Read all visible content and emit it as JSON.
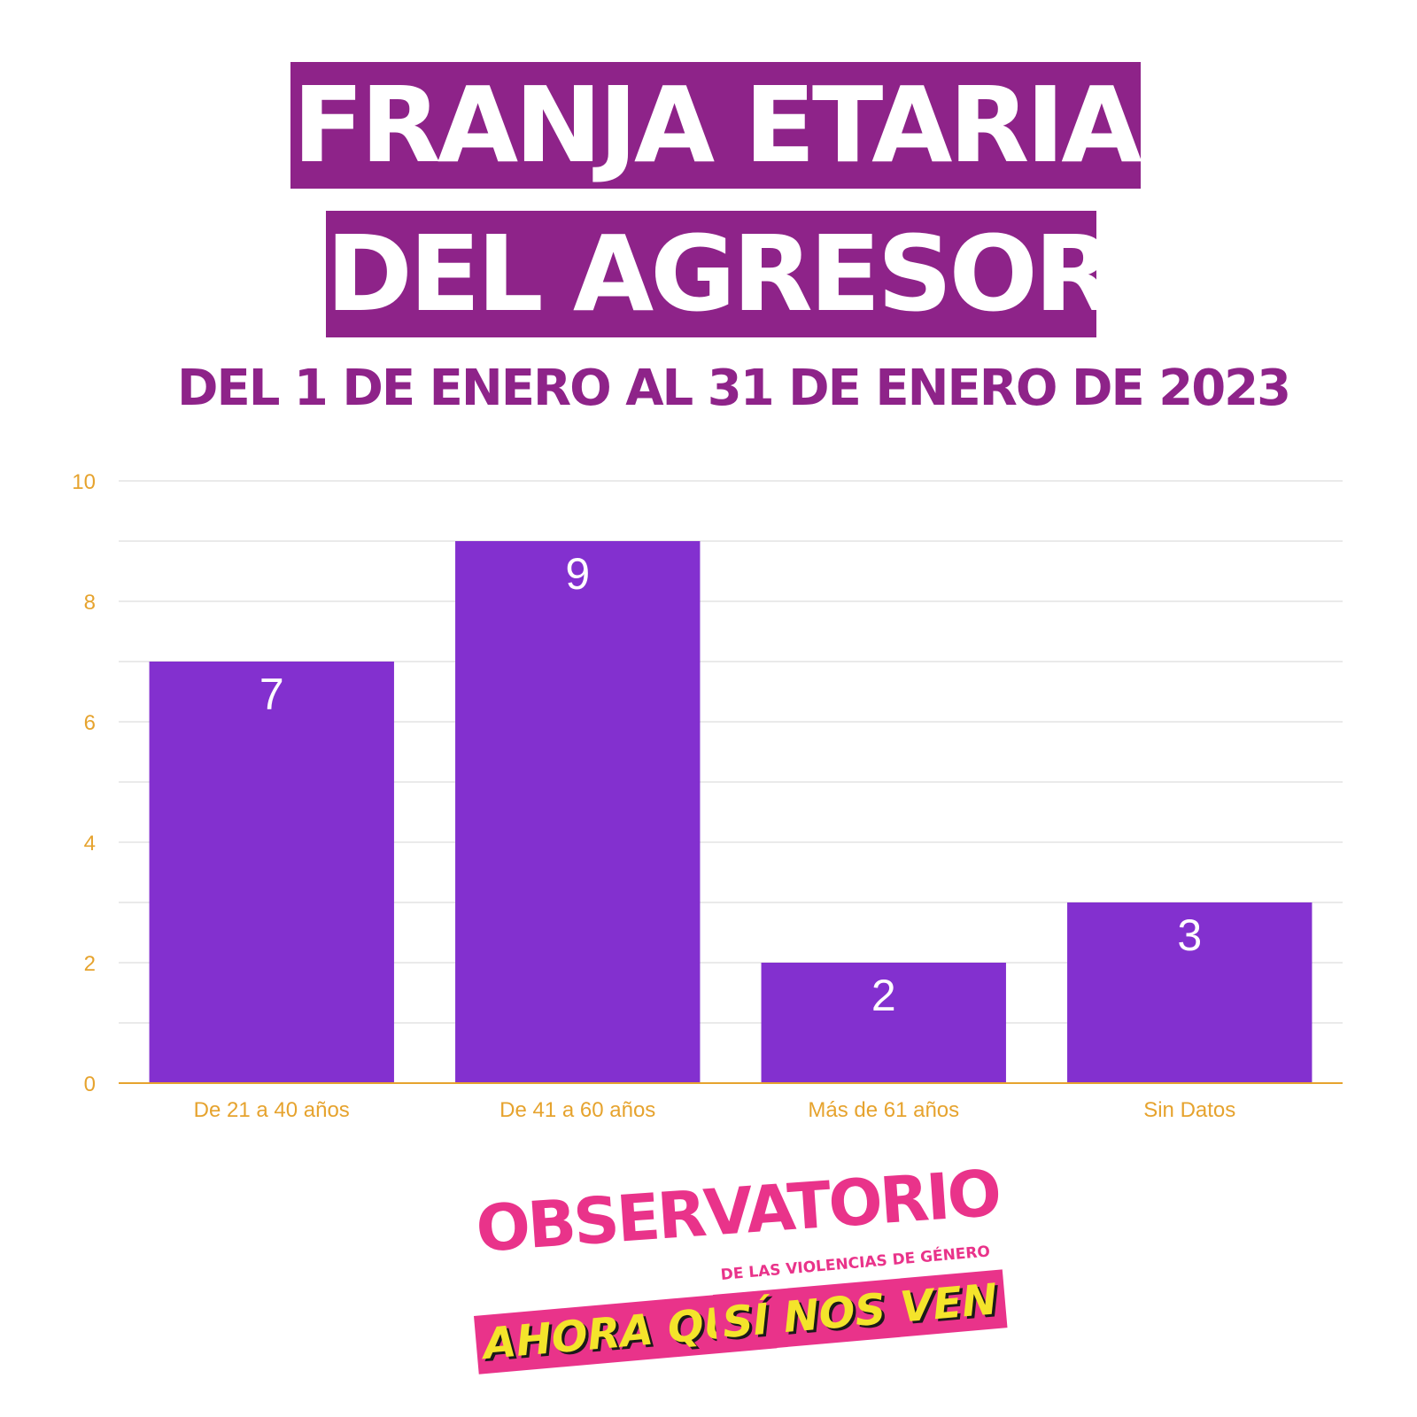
{
  "header": {
    "title_line1": "FRANJA ETARIA",
    "title_line2": "DEL AGRESOR",
    "subtitle": "DEL 1 DE ENERO AL 31 DE ENERO DE 2023"
  },
  "colors": {
    "title_bg": "#8e2389",
    "bar": "#8330cf",
    "axis_text": "#e6a32e",
    "grid": "#e4e4e4",
    "logo_pink": "#e9338a",
    "logo_yellow": "#f4e42b"
  },
  "chart_data": {
    "type": "bar",
    "categories": [
      "De 21 a 40 años",
      "De 41 a 60 años",
      "Más de 61 años",
      "Sin Datos"
    ],
    "values": [
      7,
      9,
      2,
      3
    ],
    "yticks": [
      0,
      2,
      4,
      6,
      8,
      10
    ],
    "ylim": [
      0,
      10
    ],
    "grid": true,
    "data_labels": true
  },
  "logo": {
    "title": "OBSERVATORIO",
    "subtitle": "DE LAS VIOLENCIAS DE GÉNERO",
    "banner_left": "AHORA QUE",
    "banner_right": "SÍ NOS VEN"
  }
}
